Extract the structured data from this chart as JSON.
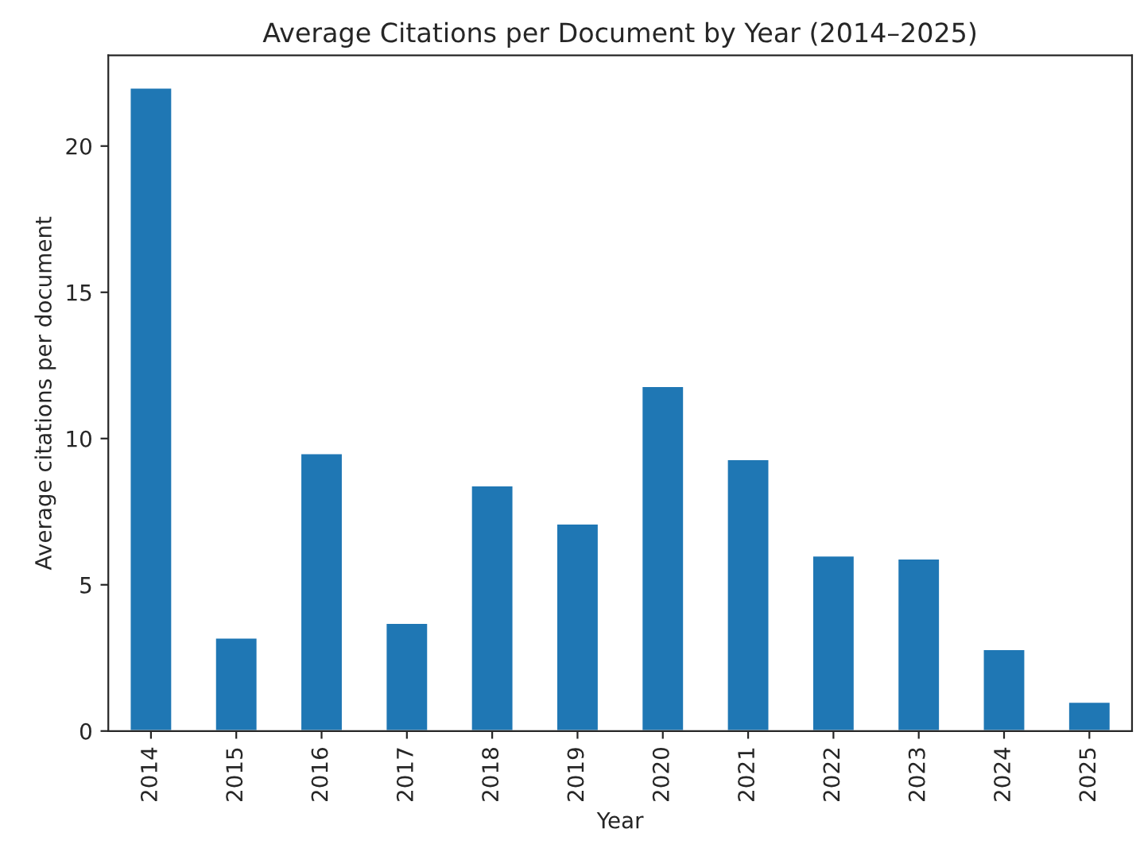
{
  "chart_data": {
    "type": "bar",
    "title": "Average Citations per Document by Year (2014–2025)",
    "xlabel": "Year",
    "ylabel": "Average citations per document",
    "categories": [
      "2014",
      "2015",
      "2016",
      "2017",
      "2018",
      "2019",
      "2020",
      "2021",
      "2022",
      "2023",
      "2024",
      "2025"
    ],
    "values": [
      22.0,
      3.2,
      9.5,
      3.7,
      8.4,
      7.1,
      11.8,
      9.3,
      6.0,
      5.9,
      2.8,
      1.0
    ],
    "color": "#1f77b4",
    "ylim": [
      0,
      23.1
    ],
    "yticks": [
      0,
      5,
      10,
      15,
      20
    ],
    "grid": false,
    "legend": false
  }
}
